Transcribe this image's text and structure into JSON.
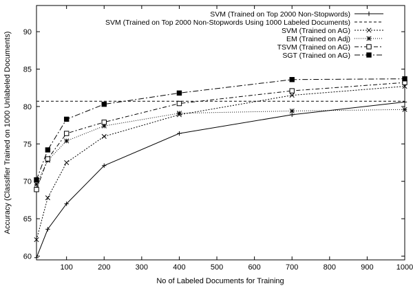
{
  "chart_data": {
    "type": "line",
    "title": "",
    "xlabel": "No of Labeled Documents for Training",
    "ylabel": "Accuracy (Classifier Trained on 1000 Unlabeled Documents)",
    "xlim": [
      20,
      1000
    ],
    "ylim": [
      59.5,
      93.5
    ],
    "xticks": [
      100,
      200,
      300,
      400,
      500,
      600,
      700,
      800,
      900,
      1000
    ],
    "yticks": [
      60,
      65,
      70,
      75,
      80,
      85,
      90
    ],
    "grid": false,
    "legend_position": "top-right",
    "series": [
      {
        "name": "SVM (Trained on Top 2000 Non-Stopwords)",
        "dash": "solid",
        "marker": "plus",
        "x": [
          20,
          50,
          100,
          200,
          400,
          700,
          1000
        ],
        "y": [
          59.8,
          63.6,
          67.0,
          72.1,
          76.4,
          78.9,
          80.6
        ]
      },
      {
        "name": "SVM (Trained on Top 2000 Non-Stopwords Using 1000 Labeled Documents)",
        "dash": "dashed",
        "marker": "none",
        "x": [
          20,
          1000
        ],
        "y": [
          80.7,
          80.7
        ]
      },
      {
        "name": "SVM (Trained on AG)",
        "dash": "dotted",
        "marker": "x",
        "x": [
          20,
          50,
          100,
          200,
          400,
          700,
          1000
        ],
        "y": [
          62.2,
          67.8,
          72.5,
          76.0,
          78.9,
          81.5,
          82.7
        ]
      },
      {
        "name": "EM (Trained on Adj)",
        "dash": "dotted-fine",
        "marker": "asterisk",
        "x": [
          20,
          50,
          100,
          200,
          400,
          700,
          1000
        ],
        "y": [
          69.6,
          72.8,
          75.4,
          77.4,
          79.1,
          79.4,
          79.6
        ]
      },
      {
        "name": "TSVM (Trained on AG)",
        "dash": "dash-dot",
        "marker": "open-square",
        "x": [
          20,
          50,
          100,
          200,
          400,
          700,
          1000
        ],
        "y": [
          68.9,
          73.0,
          76.4,
          77.9,
          80.4,
          82.1,
          83.2
        ]
      },
      {
        "name": "SGT (Trained on AG)",
        "dash": "dash-dot-long",
        "marker": "filled-square",
        "x": [
          20,
          50,
          100,
          200,
          400,
          700,
          1000
        ],
        "y": [
          70.2,
          74.2,
          78.3,
          80.3,
          81.8,
          83.6,
          83.7
        ]
      }
    ]
  }
}
